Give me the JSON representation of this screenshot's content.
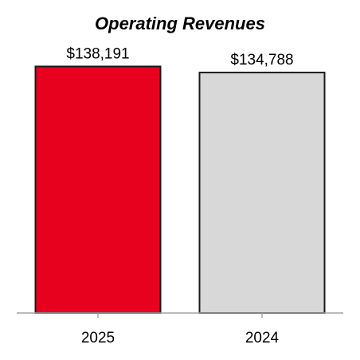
{
  "chart_data": {
    "type": "bar",
    "title": "Operating Revenues",
    "xlabel": "",
    "ylabel": "",
    "categories": [
      "2025",
      "2024"
    ],
    "values": [
      138191,
      134788
    ],
    "data_labels": [
      "$138,191",
      "$134,788"
    ],
    "colors": [
      "#e8001f",
      "#d7d8d7"
    ],
    "bar_outline_color": "#1a1a1a",
    "axis_color": "#a3a3a3",
    "ylim": [
      0,
      150000
    ],
    "grid": false,
    "legend": "none"
  }
}
